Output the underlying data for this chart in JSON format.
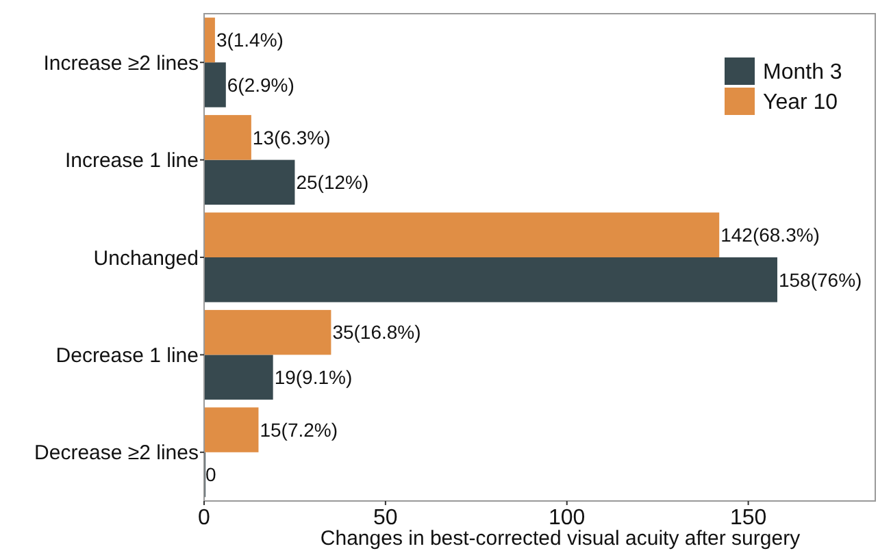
{
  "chart_data": {
    "type": "bar",
    "orientation": "horizontal",
    "xlabel": "Changes in best-corrected visual acuity after surgery",
    "categories": [
      "Increase ≥2 lines",
      "Increase 1 line",
      "Unchanged",
      "Decrease 1 line",
      "Decrease ≥2 lines"
    ],
    "series": [
      {
        "name": "Month 3",
        "color": "#37494f",
        "values": [
          6,
          25,
          158,
          19,
          0
        ],
        "value_labels": [
          "6(2.9%)",
          "25(12%)",
          "158(76%)",
          "19(9.1%)",
          "0"
        ]
      },
      {
        "name": "Year 10",
        "color": "#e08e45",
        "values": [
          3,
          13,
          142,
          35,
          15
        ],
        "value_labels": [
          "3(1.4%)",
          "13(6.3%)",
          "142(68.3%)",
          "35(16.8%)",
          "15(7.2%)"
        ]
      }
    ],
    "xlim": [
      0,
      185
    ],
    "xticks": [
      0,
      50,
      100,
      150
    ],
    "grid": false,
    "legend": "top right"
  }
}
